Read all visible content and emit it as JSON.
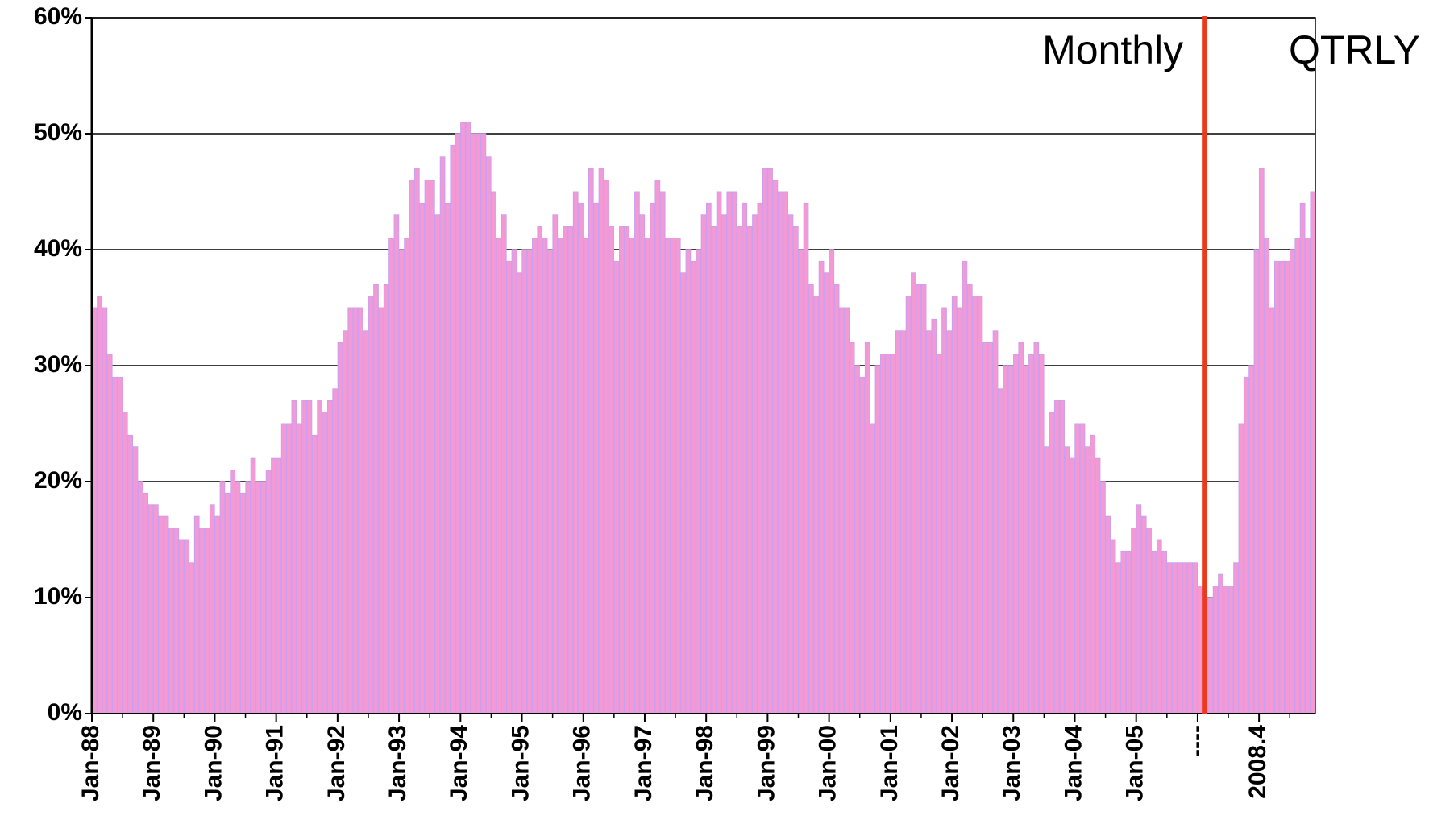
{
  "chart_data": {
    "type": "bar",
    "annotations": [
      "Monthly",
      "QTRLY"
    ],
    "color": "#f39ad6",
    "edge_color": "#c9a0f0",
    "divider_color": "#ee3a1c",
    "categories": [
      "Jan-88",
      null,
      null,
      null,
      null,
      null,
      null,
      null,
      null,
      null,
      null,
      null,
      "Jan-89",
      null,
      null,
      null,
      null,
      null,
      null,
      null,
      null,
      null,
      null,
      null,
      "Jan-90",
      null,
      null,
      null,
      null,
      null,
      null,
      null,
      null,
      null,
      null,
      null,
      "Jan-91",
      null,
      null,
      null,
      null,
      null,
      null,
      null,
      null,
      null,
      null,
      null,
      "Jan-92",
      null,
      null,
      null,
      null,
      null,
      null,
      null,
      null,
      null,
      null,
      null,
      "Jan-93",
      null,
      null,
      null,
      null,
      null,
      null,
      null,
      null,
      null,
      null,
      null,
      "Jan-94",
      null,
      null,
      null,
      null,
      null,
      null,
      null,
      null,
      null,
      null,
      null,
      "Jan-95",
      null,
      null,
      null,
      null,
      null,
      null,
      null,
      null,
      null,
      null,
      null,
      "Jan-96",
      null,
      null,
      null,
      null,
      null,
      null,
      null,
      null,
      null,
      null,
      null,
      "Jan-97",
      null,
      null,
      null,
      null,
      null,
      null,
      null,
      null,
      null,
      null,
      null,
      "Jan-98",
      null,
      null,
      null,
      null,
      null,
      null,
      null,
      null,
      null,
      null,
      null,
      "Jan-99",
      null,
      null,
      null,
      null,
      null,
      null,
      null,
      null,
      null,
      null,
      null,
      "Jan-00",
      null,
      null,
      null,
      null,
      null,
      null,
      null,
      null,
      null,
      null,
      null,
      "Jan-01",
      null,
      null,
      null,
      null,
      null,
      null,
      null,
      null,
      null,
      null,
      null,
      "Jan-02",
      null,
      null,
      null,
      null,
      null,
      null,
      null,
      null,
      null,
      null,
      null,
      "Jan-03",
      null,
      null,
      null,
      null,
      null,
      null,
      null,
      null,
      null,
      null,
      null,
      "Jan-04",
      null,
      null,
      null,
      null,
      null,
      null,
      null,
      null,
      null,
      null,
      null,
      "Jan-05",
      null,
      null,
      null,
      null,
      null,
      null,
      null,
      null,
      null,
      null,
      null,
      "----",
      null,
      null,
      null,
      null,
      null,
      null,
      null,
      null,
      null,
      null,
      null,
      "2008.4",
      null,
      null,
      null,
      null,
      null,
      null,
      null,
      null,
      null,
      null
    ],
    "values": [
      35,
      36,
      35,
      31,
      29,
      29,
      26,
      24,
      23,
      20,
      19,
      18,
      18,
      17,
      17,
      16,
      16,
      15,
      15,
      13,
      17,
      16,
      16,
      18,
      17,
      20,
      19,
      21,
      20,
      19,
      20,
      22,
      20,
      20,
      21,
      22,
      22,
      25,
      25,
      27,
      25,
      27,
      27,
      24,
      27,
      26,
      27,
      28,
      32,
      33,
      35,
      35,
      35,
      33,
      36,
      37,
      35,
      37,
      41,
      43,
      40,
      41,
      46,
      47,
      44,
      46,
      46,
      43,
      48,
      44,
      49,
      50,
      51,
      51,
      50,
      50,
      50,
      48,
      45,
      41,
      43,
      39,
      40,
      38,
      40,
      40,
      41,
      42,
      41,
      40,
      43,
      41,
      42,
      42,
      45,
      44,
      41,
      47,
      44,
      47,
      46,
      42,
      39,
      42,
      42,
      41,
      45,
      43,
      41,
      44,
      46,
      45,
      41,
      41,
      41,
      38,
      40,
      39,
      40,
      43,
      44,
      42,
      45,
      43,
      45,
      45,
      42,
      44,
      42,
      43,
      44,
      47,
      47,
      46,
      45,
      45,
      43,
      42,
      40,
      44,
      37,
      36,
      39,
      38,
      40,
      37,
      35,
      35,
      32,
      30,
      29,
      32,
      25,
      30,
      31,
      31,
      31,
      33,
      33,
      36,
      38,
      37,
      37,
      33,
      34,
      31,
      35,
      33,
      36,
      35,
      39,
      37,
      36,
      36,
      32,
      32,
      33,
      28,
      30,
      30,
      31,
      32,
      30,
      31,
      32,
      31,
      23,
      26,
      27,
      27,
      23,
      22,
      25,
      25,
      23,
      24,
      22,
      20,
      17,
      15,
      13,
      14,
      14,
      16,
      18,
      17,
      16,
      14,
      15,
      14,
      13,
      13,
      13,
      13,
      13,
      13,
      11,
      10,
      10,
      11,
      12,
      11,
      11,
      13,
      25,
      29,
      30,
      40,
      47,
      41,
      35,
      39,
      39,
      39,
      40,
      41,
      44,
      41,
      45
    ],
    "ylim": [
      0,
      60
    ],
    "yticks": [
      {
        "value": 0,
        "label": "0%"
      },
      {
        "value": 10,
        "label": "10%"
      },
      {
        "value": 20,
        "label": "20%"
      },
      {
        "value": 30,
        "label": "30%"
      },
      {
        "value": 40,
        "label": "40%"
      },
      {
        "value": 50,
        "label": "50%"
      },
      {
        "value": 60,
        "label": "60%"
      }
    ],
    "grid": true
  }
}
